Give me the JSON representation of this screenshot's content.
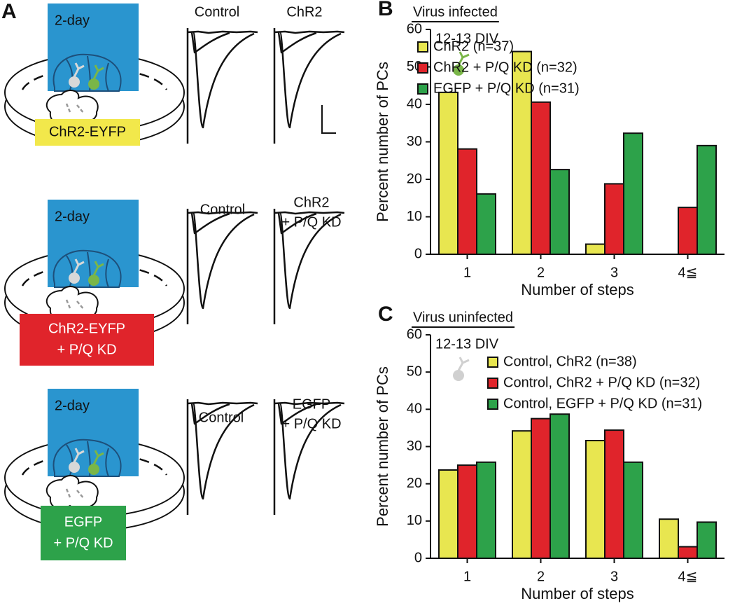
{
  "panel_a": {
    "label": "A",
    "rows": [
      {
        "duration": "2-day",
        "construct": [
          "ChR2-EYFP"
        ],
        "traces": [
          [
            "Control"
          ],
          [
            "ChR2"
          ]
        ]
      },
      {
        "duration": "2-day",
        "construct": [
          "ChR2-EYFP",
          "+ P/Q KD"
        ],
        "traces": [
          [
            "Control"
          ],
          [
            "ChR2",
            "+ P/Q KD"
          ]
        ]
      },
      {
        "duration": "2-day",
        "construct": [
          "EGFP",
          "+ P/Q KD"
        ],
        "traces": [
          [
            "Control"
          ],
          [
            "EGFP",
            "+ P/Q KD"
          ]
        ]
      }
    ]
  },
  "chart_data": [
    {
      "type": "bar",
      "panel": "B",
      "title": "Virus infected",
      "annotation": "12-13 DIV",
      "categories": [
        "1",
        "2",
        "3",
        "4≦"
      ],
      "xlabel": "Number of steps",
      "ylabel": "Percent number of PCs",
      "ylim": [
        0,
        60
      ],
      "yticks": [
        0,
        10,
        20,
        30,
        40,
        50,
        60
      ],
      "series": [
        {
          "name": "ChR2 (n=37)",
          "color": "#e8e650",
          "values": [
            43.2,
            54.1,
            2.7,
            0
          ]
        },
        {
          "name": "ChR2 + P/Q KD (n=32)",
          "color": "#e0242b",
          "values": [
            28.1,
            40.6,
            18.8,
            12.5
          ]
        },
        {
          "name": "EGFP + P/Q KD (n=31)",
          "color": "#2da24a",
          "values": [
            16.1,
            22.6,
            32.3,
            29.0
          ]
        }
      ]
    },
    {
      "type": "bar",
      "panel": "C",
      "title": "Virus uninfected",
      "annotation": "12-13 DIV",
      "categories": [
        "1",
        "2",
        "3",
        "4≦"
      ],
      "xlabel": "Number of steps",
      "ylabel": "Percent number of PCs",
      "ylim": [
        0,
        60
      ],
      "yticks": [
        0,
        10,
        20,
        30,
        40,
        50,
        60
      ],
      "series": [
        {
          "name": "Control, ChR2 (n=38)",
          "color": "#e8e650",
          "values": [
            23.7,
            34.2,
            31.6,
            10.5
          ]
        },
        {
          "name": "Control, ChR2 + P/Q KD (n=32)",
          "color": "#e0242b",
          "values": [
            25.0,
            37.5,
            34.4,
            3.1
          ]
        },
        {
          "name": "Control, EGFP + P/Q KD (n=31)",
          "color": "#2da24a",
          "values": [
            25.8,
            38.7,
            25.8,
            9.7
          ]
        }
      ]
    }
  ]
}
